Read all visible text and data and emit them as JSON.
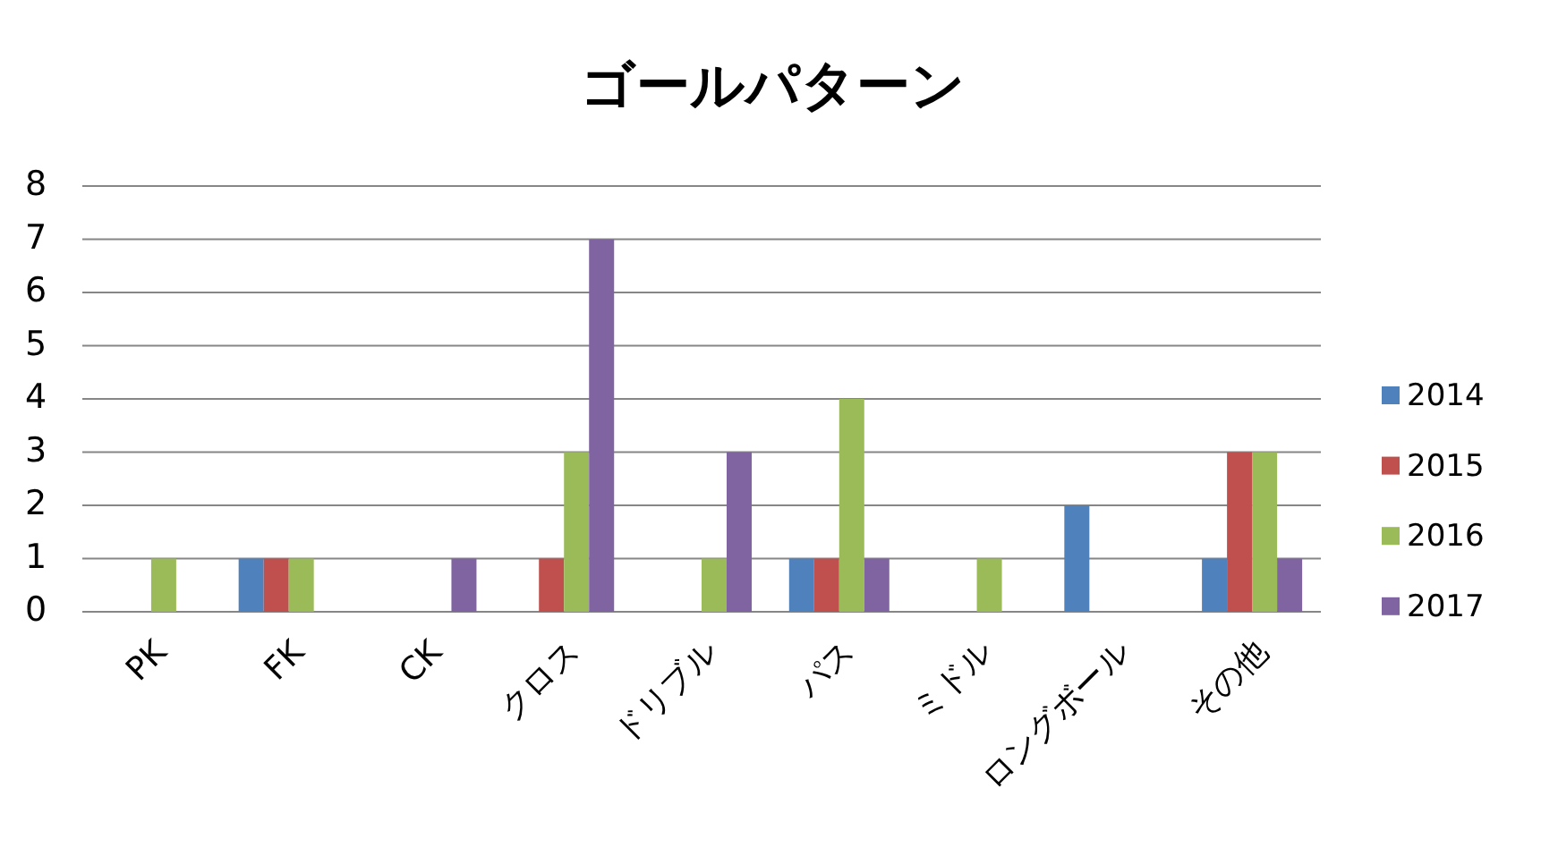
{
  "chart_data": {
    "type": "bar",
    "title": "ゴールパターン",
    "categories": [
      "PK",
      "FK",
      "CK",
      "クロス",
      "ドリブル",
      "パス",
      "ミドル",
      "ロングボール",
      "その他"
    ],
    "series": [
      {
        "name": "2014",
        "color": "#4f81bd",
        "values": [
          0,
          1,
          0,
          0,
          0,
          1,
          0,
          2,
          1
        ]
      },
      {
        "name": "2015",
        "color": "#c0504d",
        "values": [
          0,
          1,
          0,
          1,
          0,
          1,
          0,
          0,
          3
        ]
      },
      {
        "name": "2016",
        "color": "#9bbb59",
        "values": [
          1,
          1,
          0,
          3,
          1,
          4,
          1,
          0,
          3
        ]
      },
      {
        "name": "2017",
        "color": "#8064a2",
        "values": [
          0,
          0,
          1,
          7,
          3,
          1,
          0,
          0,
          1
        ]
      }
    ],
    "ylim": [
      0,
      8
    ],
    "yticks": [
      0,
      1,
      2,
      3,
      4,
      5,
      6,
      7,
      8
    ],
    "grid": "y",
    "legend": "right"
  }
}
